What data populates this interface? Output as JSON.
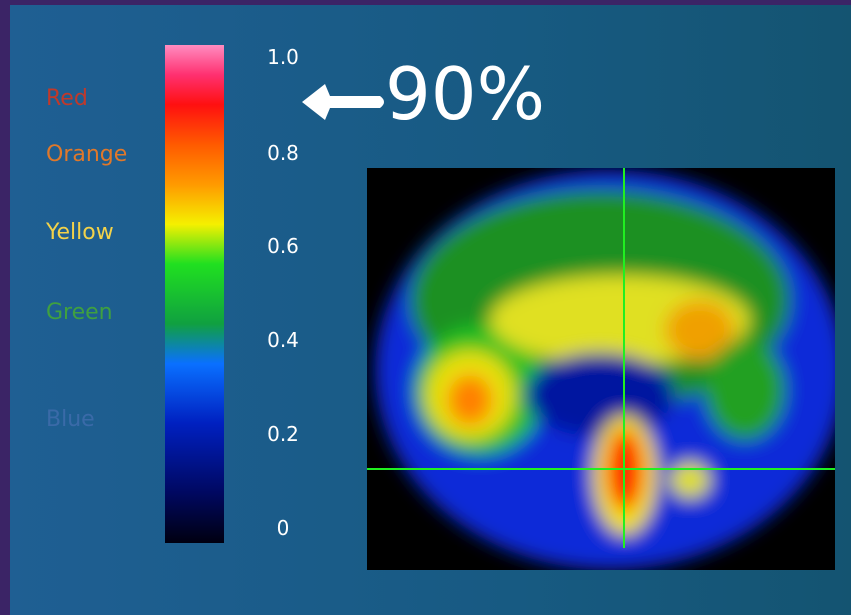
{
  "legend_labels": [
    "Red",
    "Orange",
    "Yellow",
    "Green",
    "Blue"
  ],
  "scale_ticks": [
    "1.0",
    "0.8",
    "0.6",
    "0.4",
    "0.2",
    "0"
  ],
  "callout": "90%"
}
